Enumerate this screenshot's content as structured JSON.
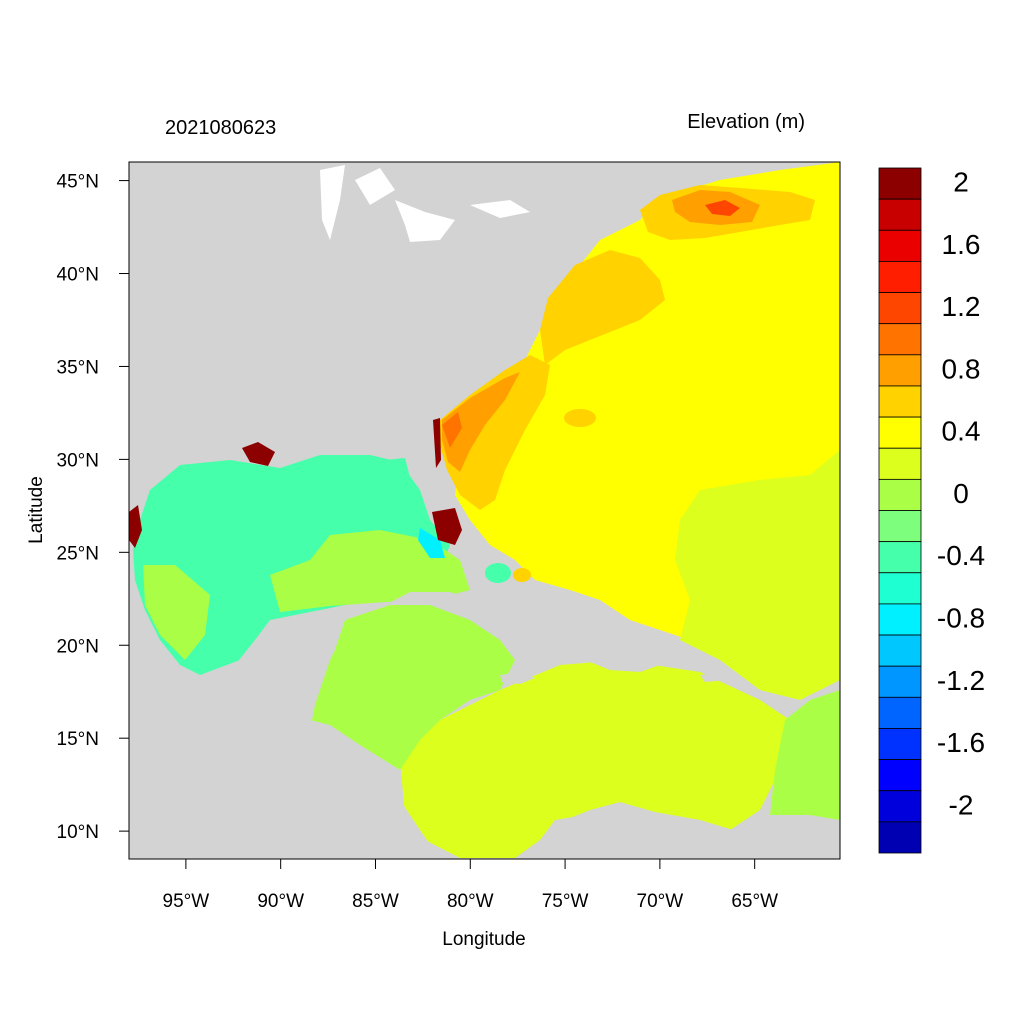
{
  "header": {
    "timestamp": "2021080623",
    "field_label": "Elevation (m)"
  },
  "axes": {
    "xlabel": "Longitude",
    "ylabel": "Latitude",
    "lon_range": [
      -98.0,
      -60.5
    ],
    "lat_range": [
      8.5,
      46.0
    ],
    "x_ticks": [
      {
        "value": -95,
        "label": "95°W"
      },
      {
        "value": -90,
        "label": "90°W"
      },
      {
        "value": -85,
        "label": "85°W"
      },
      {
        "value": -80,
        "label": "80°W"
      },
      {
        "value": -75,
        "label": "75°W"
      },
      {
        "value": -70,
        "label": "70°W"
      },
      {
        "value": -65,
        "label": "65°W"
      }
    ],
    "y_ticks": [
      {
        "value": 45,
        "label": "45°N"
      },
      {
        "value": 40,
        "label": "40°N"
      },
      {
        "value": 35,
        "label": "35°N"
      },
      {
        "value": 30,
        "label": "30°N"
      },
      {
        "value": 25,
        "label": "25°N"
      },
      {
        "value": 20,
        "label": "20°N"
      },
      {
        "value": 15,
        "label": "15°N"
      },
      {
        "value": 10,
        "label": "10°N"
      }
    ]
  },
  "colorbar": {
    "levels": [
      {
        "value": -2.2,
        "color": "#0000b3"
      },
      {
        "value": -2.0,
        "color": "#0000dc"
      },
      {
        "value": -1.8,
        "color": "#0000ff"
      },
      {
        "value": -1.6,
        "color": "#0032ff"
      },
      {
        "value": -1.4,
        "color": "#0064ff"
      },
      {
        "value": -1.2,
        "color": "#0096ff"
      },
      {
        "value": -1.0,
        "color": "#00c8ff"
      },
      {
        "value": -0.8,
        "color": "#00f0ff"
      },
      {
        "value": -0.6,
        "color": "#1effd2"
      },
      {
        "value": -0.4,
        "color": "#46ffaa"
      },
      {
        "value": -0.2,
        "color": "#7dff7d"
      },
      {
        "value": 0.0,
        "color": "#aaff46"
      },
      {
        "value": 0.2,
        "color": "#dcff1e"
      },
      {
        "value": 0.4,
        "color": "#ffff00"
      },
      {
        "value": 0.6,
        "color": "#ffd200"
      },
      {
        "value": 0.8,
        "color": "#ffa000"
      },
      {
        "value": 1.0,
        "color": "#ff7300"
      },
      {
        "value": 1.2,
        "color": "#ff4600"
      },
      {
        "value": 1.4,
        "color": "#ff1e00"
      },
      {
        "value": 1.6,
        "color": "#eb0000"
      },
      {
        "value": 1.8,
        "color": "#c80000"
      },
      {
        "value": 2.0,
        "color": "#8c0000"
      }
    ],
    "tick_labels": [
      {
        "value": 2.0,
        "label": "2"
      },
      {
        "value": 1.6,
        "label": "1.6"
      },
      {
        "value": 1.2,
        "label": "1.2"
      },
      {
        "value": 0.8,
        "label": "0.8"
      },
      {
        "value": 0.4,
        "label": "0.4"
      },
      {
        "value": 0.0,
        "label": "0"
      },
      {
        "value": -0.4,
        "label": "-0.4"
      },
      {
        "value": -0.8,
        "label": "-0.8"
      },
      {
        "value": -1.2,
        "label": "-1.2"
      },
      {
        "value": -1.6,
        "label": "-1.6"
      },
      {
        "value": -2.0,
        "label": "-2"
      }
    ]
  },
  "colors": {
    "land": "#d3d3d3",
    "open_atlantic": "#ffff00",
    "gulf_of_mexico": "#46ffaa",
    "caribbean": "#aaff46",
    "eastern_caribbean": "#dcff1e",
    "gulf_stream_shelf": "#ffd200",
    "southeast_coast": "#ffa000",
    "gulf_of_maine": "#ffa000",
    "coastal_extreme": "#8c0000"
  }
}
